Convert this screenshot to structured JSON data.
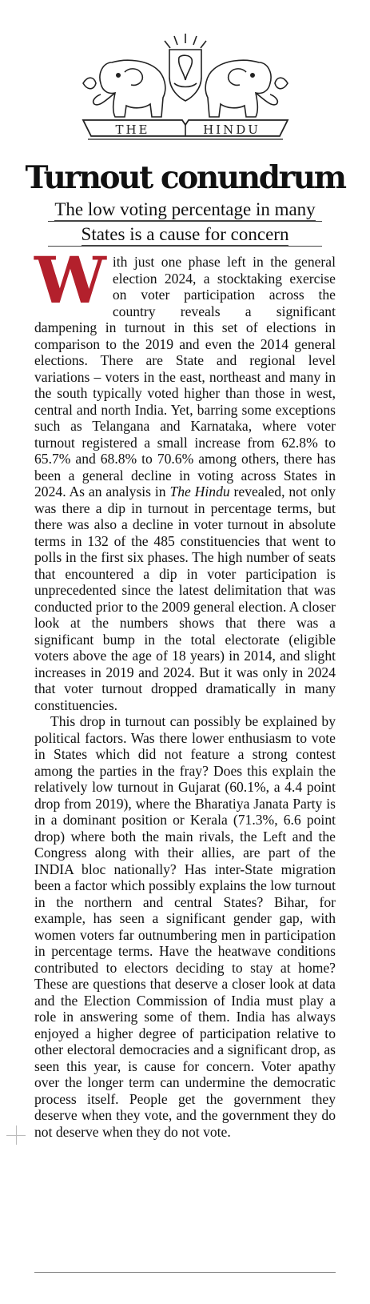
{
  "masthead": {
    "logo_text": "THE HINDU",
    "emblem": "elephants-conch-emblem-icon"
  },
  "article": {
    "headline": "Turnout conundrum",
    "deck_line1": "The low voting percentage in many",
    "deck_line2": "States is a cause for concern",
    "dropcap": "W",
    "p1_start": "ith just one phase left in the general election 2024, a stocktaking exercise on voter participation across the country reveals a significant dampening in turnout in this set of elections in comparison to the 2019 and even the 2014 general elections. There are State and regional level variations – voters in the east, northeast and many in the south typically voted higher than those in west, central and north India. Yet, barring some exceptions such as Telangana and Karnataka, where voter turnout registered a small increase from 62.8% to 65.7% and 68.8% to 70.6% among others, there has been a general decline in voting across States in 2024. As an analysis in ",
    "p1_italic": "The Hindu",
    "p1_end": " revealed, not only was there a dip in turnout in percentage terms, but there was also a decline in voter turnout in absolute terms in 132 of the 485 constituencies that went to polls in the first six phases. The high number of seats that encountered a dip in voter participation is unprecedented since the latest delimitation that was conducted prior to the 2009 general election. A closer look at the numbers shows that there was a significant bump in the total electorate (eligible voters above the age of 18 years) in 2014, and slight increases in 2019 and 2024. But it was only in 2024 that voter turnout dropped dramatically in many constituencies.",
    "p2": "This drop in turnout can possibly be explained by political factors. Was there lower enthusiasm to vote in States which did not feature a strong contest among the parties in the fray? Does this explain the relatively low turnout in Gujarat (60.1%, a 4.4 point drop from 2019), where the Bharatiya Janata Party is in a dominant position or Kerala (71.3%, 6.6 point drop) where both the main rivals, the Left and the Congress along with their allies, are part of the INDIA bloc nationally? Has inter-State migration been a factor which possibly explains the low turnout in the northern and central States? Bihar, for example, has seen a significant gender gap, with women voters far outnumbering men in participation in percentage terms. Have the heatwave conditions contributed to electors deciding to stay at home? These are questions that deserve a closer look at data and the Election Commission of India must play a role in answering some of them. India has always enjoyed a higher degree of participation relative to other electoral democracies and a significant drop, as seen this year, is cause for concern. Voter apathy over the longer term can undermine the democratic process itself. People get the government they deserve when they vote, and the government they do not deserve when they do not vote."
  }
}
